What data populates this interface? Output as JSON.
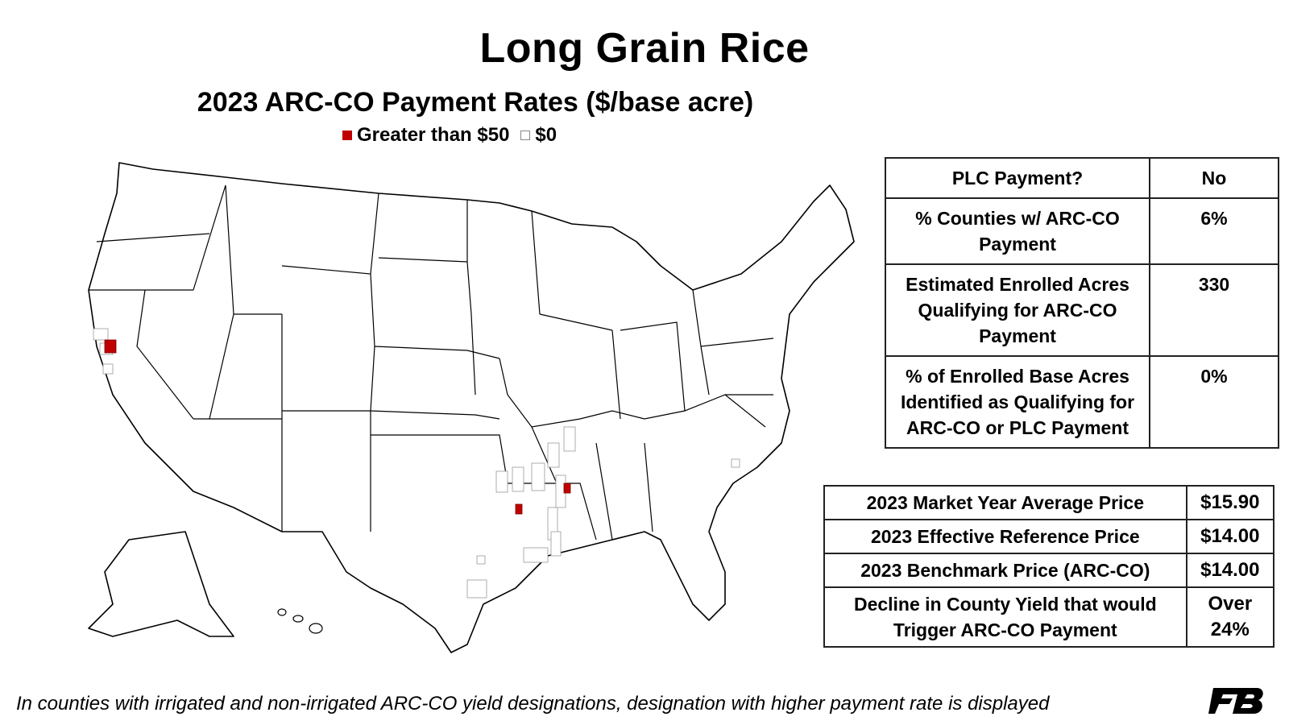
{
  "title": "Long Grain Rice",
  "subtitle": "2023 ARC-CO Payment Rates ($/base acre)",
  "legend": {
    "items": [
      {
        "label": "Greater than $50",
        "color": "#c00000"
      },
      {
        "label": "$0",
        "color": "#ffffff"
      }
    ]
  },
  "summary_table": {
    "rows": [
      {
        "label": "PLC Payment?",
        "value": "No"
      },
      {
        "label": "% Counties w/ ARC-CO Payment",
        "value": "6%"
      },
      {
        "label": "Estimated Enrolled Acres Qualifying for ARC-CO Payment",
        "value": "330"
      },
      {
        "label": "% of Enrolled Base Acres Identified as Qualifying for ARC-CO or PLC Payment",
        "value": "0%"
      }
    ]
  },
  "price_table": {
    "rows": [
      {
        "label": "2023 Market Year Average Price",
        "value": "$15.90"
      },
      {
        "label": "2023 Effective Reference Price",
        "value": "$14.00"
      },
      {
        "label": "2023 Benchmark Price (ARC-CO)",
        "value": "$14.00"
      },
      {
        "label": "Decline in County Yield that would Trigger ARC-CO Payment",
        "value": "Over 24%"
      }
    ]
  },
  "footnote": "In counties with irrigated and non-irrigated ARC-CO yield designations, designation with higher payment rate is displayed",
  "logo_icon": "farm-bureau-logo-icon",
  "colors": {
    "payment_gt_50": "#c00000",
    "payment_zero": "#ffffff",
    "outline": "#000000"
  }
}
